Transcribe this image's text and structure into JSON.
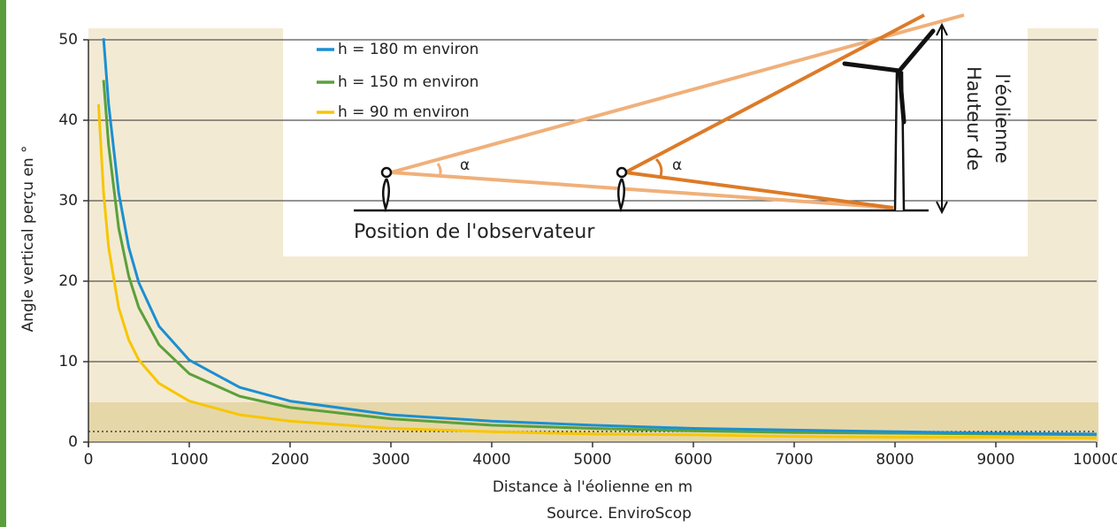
{
  "chart_data": {
    "type": "line",
    "x_label": "Distance à l'éolienne en m",
    "y_label": "Angle vertical perçu en °",
    "source": "Source. EnviroScop",
    "diagram": {
      "observer_label": "Position de l'observateur",
      "angle_label_1": "α",
      "angle_label_2": "α",
      "height_label_line1": "Hauteur de",
      "height_label_line2": "l'éolienne"
    },
    "xlim": [
      0,
      10000
    ],
    "xticks": [
      0,
      1000,
      2000,
      3000,
      4000,
      5000,
      6000,
      7000,
      8000,
      9000,
      10000
    ],
    "ylim": [
      0,
      50
    ],
    "yticks": [
      0,
      10,
      20,
      30,
      40,
      50
    ],
    "grid": true,
    "series": [
      {
        "name": "h = 180 m environ",
        "color": "#1b8fd2",
        "x": [
          150,
          200,
          300,
          400,
          500,
          700,
          1000,
          1500,
          2000,
          3000,
          4000,
          5000,
          6000,
          7000,
          8000,
          9000,
          10000
        ],
        "values": [
          50.2,
          42.0,
          31.0,
          24.2,
          19.8,
          14.4,
          10.2,
          6.8,
          5.1,
          3.4,
          2.6,
          2.1,
          1.7,
          1.5,
          1.3,
          1.1,
          1.0
        ]
      },
      {
        "name": "h = 150 m environ",
        "color": "#5aa03a",
        "x": [
          150,
          200,
          300,
          400,
          500,
          700,
          1000,
          1500,
          2000,
          3000,
          4000,
          5000,
          6000,
          7000,
          8000,
          9000,
          10000
        ],
        "values": [
          45.0,
          36.9,
          26.6,
          20.6,
          16.7,
          12.1,
          8.5,
          5.7,
          4.3,
          2.9,
          2.1,
          1.7,
          1.4,
          1.2,
          1.1,
          1.0,
          0.9
        ]
      },
      {
        "name": "h = 90 m environ",
        "color": "#f7c600",
        "x": [
          100,
          150,
          200,
          300,
          400,
          500,
          700,
          1000,
          1500,
          2000,
          3000,
          4000,
          5000,
          6000,
          7000,
          8000,
          9000,
          10000
        ],
        "values": [
          42.0,
          31.0,
          24.2,
          16.7,
          12.7,
          10.2,
          7.3,
          5.1,
          3.4,
          2.6,
          1.7,
          1.3,
          1.0,
          0.9,
          0.7,
          0.6,
          0.6,
          0.5
        ]
      }
    ]
  }
}
